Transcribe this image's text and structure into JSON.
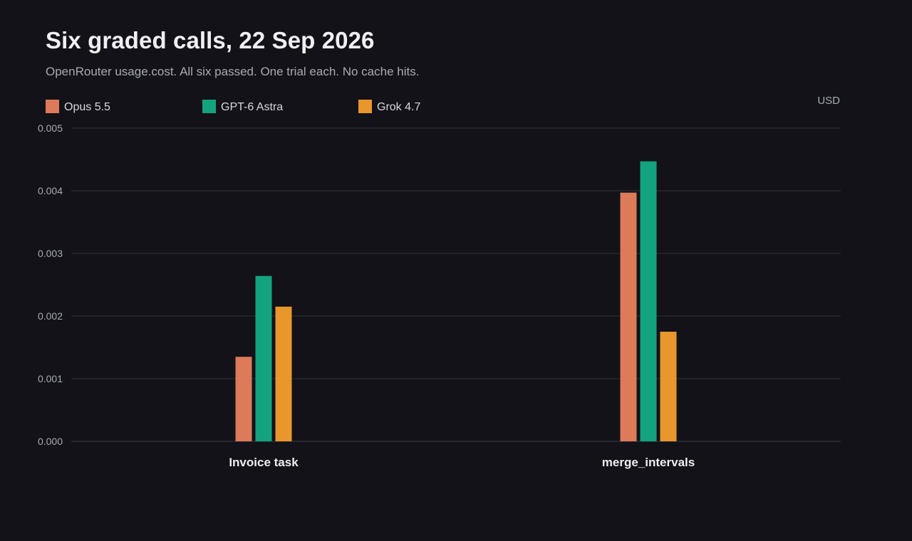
{
  "header": {
    "title": "Six graded calls, 22 Sep 2026",
    "subtitle": "OpenRouter usage.cost. All six passed. One trial each. No cache hits."
  },
  "chart_data": {
    "type": "bar",
    "title": "Six graded calls, 22 Sep 2026",
    "subtitle": "OpenRouter usage.cost. All six passed. One trial each. No cache hits.",
    "unit": "USD",
    "categories": [
      "Invoice task",
      "merge_intervals"
    ],
    "series": [
      {
        "name": "Opus 5.5",
        "values": [
          0.00135,
          0.00397
        ],
        "color": "#dc7a5a"
      },
      {
        "name": "GPT-6 Astra",
        "values": [
          0.00264,
          0.00447
        ],
        "color": "#14a37f"
      },
      {
        "name": "Grok 4.7",
        "values": [
          0.00215,
          0.00175
        ],
        "color": "#e8972c"
      }
    ],
    "ylim": [
      0,
      0.005
    ],
    "yticks": [
      "0.000",
      "0.001",
      "0.002",
      "0.003",
      "0.004",
      "0.005"
    ],
    "grid": true,
    "legend_position": "top-left",
    "colors": {
      "background": "#121218",
      "grid": "#33343c",
      "tick_label": "#a9aab4",
      "category_label": "#eeeef2"
    }
  }
}
